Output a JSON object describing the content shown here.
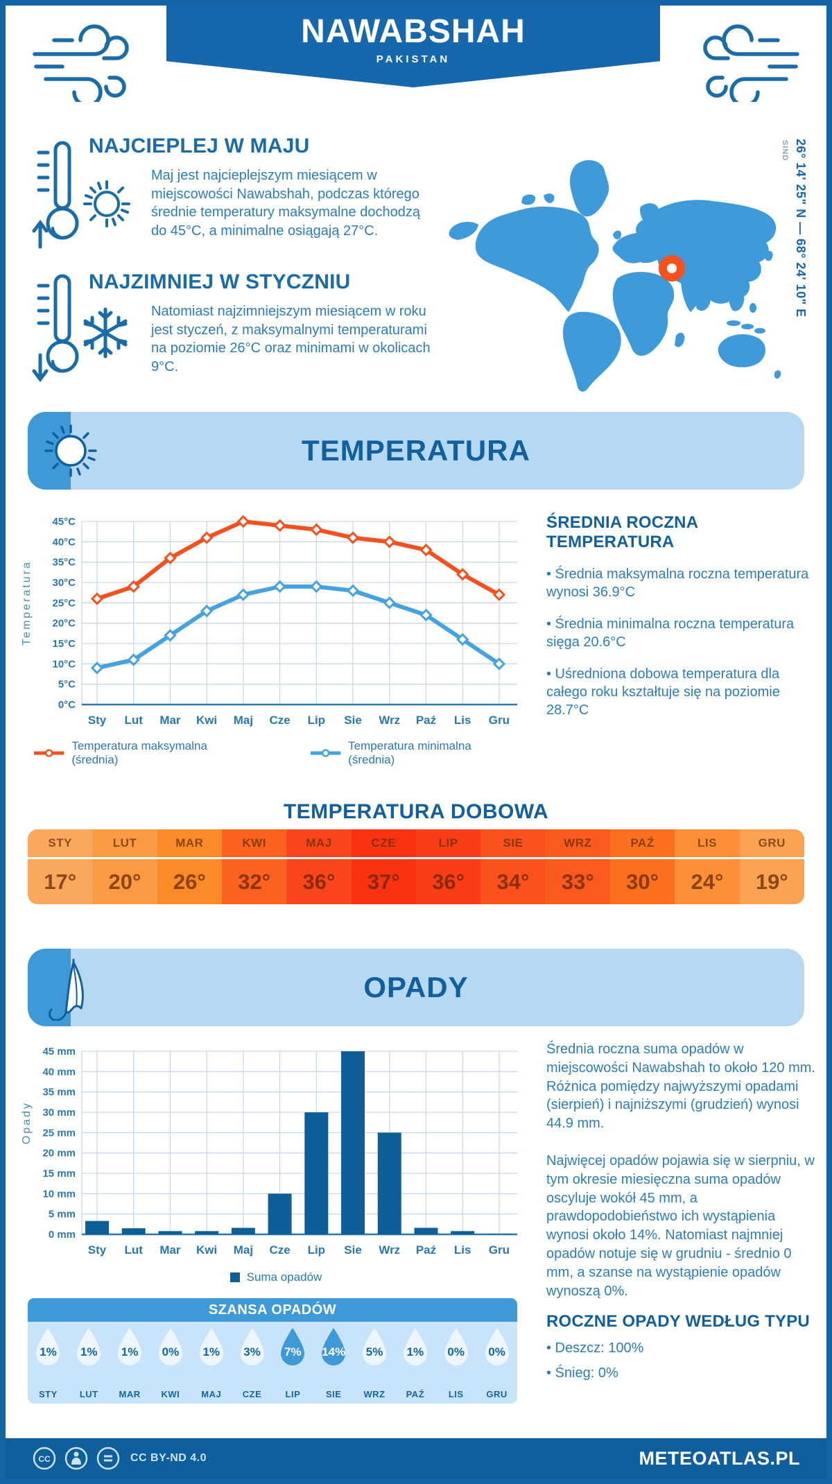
{
  "header": {
    "title": "NAWABSHAH",
    "subtitle": "PAKISTAN"
  },
  "location": {
    "coordinates": "26° 14' 25\" N — 68° 24' 10\" E",
    "region": "SIND"
  },
  "highlights": [
    {
      "icon": "thermometer-up-icon,sun-icon",
      "title": "NAJCIEPLEJ W MAJU",
      "text": "Maj jest najcieplejszym miesiącem w miejscowości Nawabshah, podczas którego średnie temperatury maksymalne dochodzą do 45°C, a minimalne osiągają 27°C."
    },
    {
      "icon": "thermometer-down-icon,snowflake-icon",
      "title": "NAJZIMNIEJ W STYCZNIU",
      "text": "Natomiast najzimniejszym miesiącem w roku jest styczeń, z maksymalnymi temperaturami na poziomie 26°C oraz minimami w okolicach 9°C."
    }
  ],
  "sections": {
    "temperature_title": "TEMPERATURA",
    "precipitation_title": "OPADY"
  },
  "chart_data": [
    {
      "type": "line",
      "title": "Temperatura",
      "categories": [
        "Sty",
        "Lut",
        "Mar",
        "Kwi",
        "Maj",
        "Cze",
        "Lip",
        "Sie",
        "Wrz",
        "Paź",
        "Lis",
        "Gru"
      ],
      "series": [
        {
          "name": "Temperatura maksymalna (średnia)",
          "color": "#F5511E",
          "values": [
            26,
            29,
            36,
            41,
            45,
            44,
            43,
            41,
            40,
            38,
            32,
            27
          ]
        },
        {
          "name": "Temperatura minimalna (średnia)",
          "color": "#45A2DF",
          "values": [
            9,
            11,
            17,
            23,
            27,
            29,
            29,
            28,
            25,
            22,
            16,
            10
          ]
        }
      ],
      "xlabel": "",
      "ylabel": "Temperatura",
      "ylim": [
        0,
        45
      ],
      "ytick_step": 5,
      "ytick_suffix": "°C",
      "grid": true,
      "legend_position": "bottom"
    },
    {
      "type": "bar",
      "title": "Opady",
      "categories": [
        "Sty",
        "Lut",
        "Mar",
        "Kwi",
        "Maj",
        "Cze",
        "Lip",
        "Sie",
        "Wrz",
        "Paź",
        "Lis",
        "Gru"
      ],
      "series": [
        {
          "name": "Suma opadów",
          "color": "#0E5F97",
          "values": [
            3.3,
            1.5,
            0.8,
            0.8,
            1.6,
            10,
            30,
            45,
            25,
            1.6,
            0.8,
            0.1
          ]
        }
      ],
      "xlabel": "",
      "ylabel": "Opady",
      "ylim": [
        0,
        45
      ],
      "ytick_step": 5,
      "ytick_suffix": " mm",
      "grid": true,
      "legend_position": "bottom"
    }
  ],
  "annual_temperature": {
    "title": "ŚREDNIA ROCZNA TEMPERATURA",
    "bullets": [
      "• Średnia maksymalna roczna temperatura wynosi 36.9°C",
      "• Średnia minimalna roczna temperatura sięga 20.6°C",
      "• Uśredniona dobowa temperatura dla całego roku kształtuje się na poziomie 28.7°C"
    ]
  },
  "daily_temperature": {
    "title": "TEMPERATURA DOBOWA",
    "months": [
      "STY",
      "LUT",
      "MAR",
      "KWI",
      "MAJ",
      "CZE",
      "LIP",
      "SIE",
      "WRZ",
      "PAŹ",
      "LIS",
      "GRU"
    ],
    "values": [
      "17°",
      "20°",
      "26°",
      "32°",
      "36°",
      "37°",
      "36°",
      "34°",
      "33°",
      "30°",
      "24°",
      "19°"
    ],
    "colors": [
      "#F9A85C",
      "#FA9A42",
      "#FB8B28",
      "#FB6220",
      "#F9451B",
      "#F93311",
      "#F93D16",
      "#FA511D",
      "#FA5A1E",
      "#FB701F",
      "#FB9039",
      "#F9A251"
    ]
  },
  "precip_text": {
    "paragraphs": [
      "Średnia roczna suma opadów w miejscowości Nawabshah to około 120 mm. Różnica pomiędzy najwyższymi opadami (sierpień) i najniższymi (grudzień) wynosi 44.9 mm.",
      "Najwięcej opadów pojawia się w sierpniu, w tym okresie miesięczna suma opadów oscyluje wokół 45 mm, a prawdopodobieństwo ich wystąpienia wynosi około 14%. Natomiast najmniej opadów notuje się w grudniu - średnio 0 mm, a szanse na wystąpienie opadów wynoszą 0%."
    ]
  },
  "precip_by_type": {
    "title": "ROCZNE OPADY WEDŁUG TYPU",
    "bullets": [
      "• Deszcz: 100%",
      "• Śnieg: 0%"
    ]
  },
  "precip_chance": {
    "title": "SZANSA OPADÓW",
    "months": [
      "STY",
      "LUT",
      "MAR",
      "KWI",
      "MAJ",
      "CZE",
      "LIP",
      "SIE",
      "WRZ",
      "PAŹ",
      "LIS",
      "GRU"
    ],
    "values": [
      "1%",
      "1%",
      "1%",
      "0%",
      "1%",
      "3%",
      "7%",
      "14%",
      "5%",
      "1%",
      "0%",
      "0%"
    ],
    "highlighted": [
      6,
      7
    ]
  },
  "footer": {
    "license": "CC BY-ND 4.0",
    "site": "METEOATLAS.PL"
  },
  "colors": {
    "frame": "#1464A6",
    "banner": "#1767AC",
    "heading": "#115F9C",
    "hero_heading": "#1A6CA8",
    "body_text": "#2E7CB8",
    "light_bar": "#B5D9F4",
    "medium_blue": "#3E99D6",
    "drop_bg": "#C8E4FB",
    "grid": "#C9D8E8",
    "max_line": "#F5511E",
    "min_line": "#45A2DF",
    "bars": "#0E5F97",
    "map": "#3E9AD9",
    "marker": "#F4511E",
    "footer_bg": "#0F5F9D"
  }
}
